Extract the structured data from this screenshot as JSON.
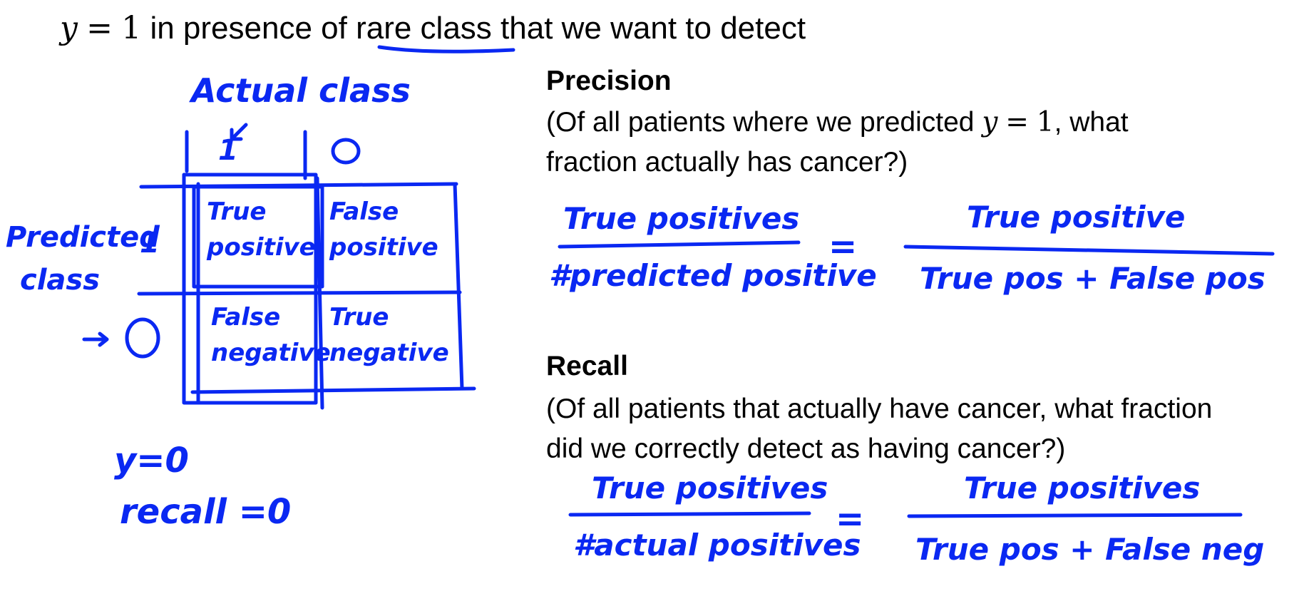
{
  "title": {
    "y_var": "y",
    "equals": "=",
    "one": "1",
    "text_before": "in presence of",
    "underlined": "rare class",
    "text_after": "that we want to detect"
  },
  "matrix": {
    "actual_label": "Actual class",
    "predicted_label_line1": "Predicted",
    "predicted_label_line2": "class",
    "actual_col_1": "1",
    "actual_col_0": "0",
    "pred_row_1": "1",
    "pred_row_0": "0",
    "tp_line1": "True",
    "tp_line2": "positive",
    "fp_line1": "False",
    "fp_line2": "positive",
    "fn_line1": "False",
    "fn_line2": "negative",
    "tn_line1": "True",
    "tn_line2": "negative"
  },
  "note": {
    "line1": "y=0",
    "line2": "recall =0"
  },
  "precision": {
    "heading": "Precision",
    "line1_a": "(Of all patients where we predicted",
    "line1_y": "y",
    "line1_eq": "=",
    "line1_one": "1",
    "line1_b": ", what",
    "line2": "fraction actually has cancer?)",
    "num_left": "True positives",
    "den_left": "#predicted positive",
    "eq": "=",
    "num_right": "True positive",
    "den_right": "True pos + False pos"
  },
  "recall": {
    "heading": "Recall",
    "line1": "(Of all patients that actually have cancer, what fraction",
    "line2": "did we correctly detect as having cancer?)",
    "num_left": "True positives",
    "den_left": "#actual positives",
    "eq": "=",
    "num_right": "True positives",
    "den_right": "True pos + False neg"
  },
  "colors": {
    "ink": "#0a28f2",
    "text": "#000000",
    "background": "#ffffff"
  }
}
